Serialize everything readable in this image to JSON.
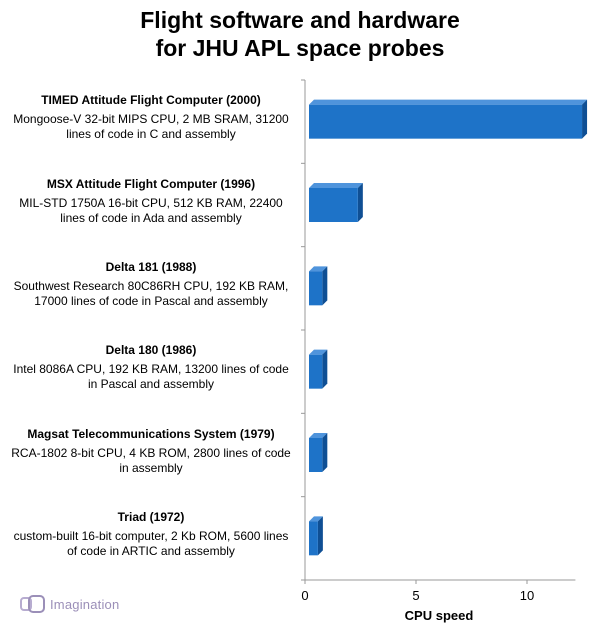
{
  "chart_data": {
    "type": "bar",
    "orientation": "horizontal",
    "title": "Flight software and hardware\nfor JHU APL space probes",
    "xlabel": "CPU speed",
    "ylabel": "",
    "xlim": [
      0,
      12
    ],
    "xticks": [
      "0",
      "5",
      "10"
    ],
    "grid": false,
    "bar_color": "#1e73c8",
    "categories": [
      {
        "name": "TIMED Attitude Flight Computer (2000)",
        "description": "Mongoose-V 32-bit MIPS CPU, 2 MB SRAM, 31200 lines of code in C and assembly"
      },
      {
        "name": "MSX Attitude Flight Computer (1996)",
        "description": "MIL-STD 1750A 16-bit CPU, 512 KB RAM, 22400 lines of code in Ada and assembly"
      },
      {
        "name": "Delta 181 (1988)",
        "description": "Southwest Research 80C86RH CPU, 192 KB RAM, 17000 lines of code in Pascal  and assembly"
      },
      {
        "name": "Delta 180 (1986)",
        "description": "Intel 8086A CPU, 192 KB RAM, 13200 lines of code in Pascal  and assembly"
      },
      {
        "name": "Magsat Telecommunications System (1979)",
        "description": "RCA-1802 8-bit CPU, 4 KB ROM, 2800 lines of code in assembly"
      },
      {
        "name": "Triad (1972)",
        "description": "custom-built 16-bit computer, 2 Kb ROM, 5600 lines of code in ARTIC and assembly"
      }
    ],
    "values": [
      12.3,
      2.2,
      0.6,
      0.6,
      0.6,
      0.4
    ]
  },
  "branding": {
    "logo_text": "Imagination"
  }
}
